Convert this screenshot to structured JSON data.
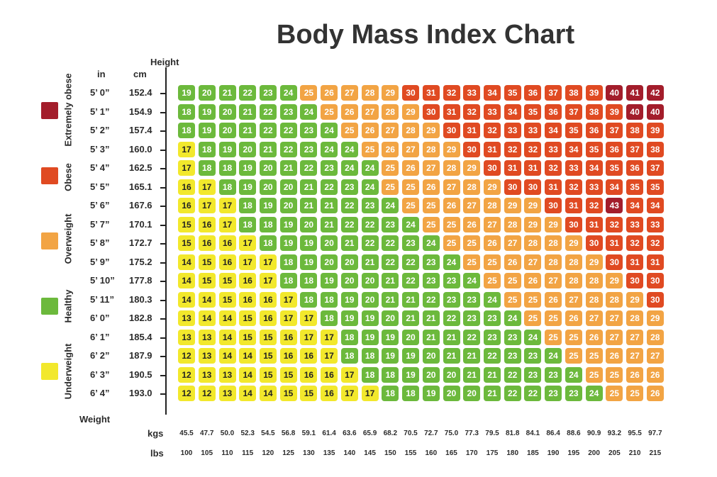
{
  "chart_data": {
    "type": "heatmap",
    "title": "Body Mass Index Chart",
    "ylabel": "Height",
    "xlabel": "Weight",
    "height_units": {
      "in": "in",
      "cm": "cm"
    },
    "weight_units": {
      "kgs": "kgs",
      "lbs": "lbs"
    },
    "heights_in": [
      "5’ 0”",
      "5’ 1”",
      "5’ 2”",
      "5’ 3”",
      "5’ 4”",
      "5’ 5”",
      "5’ 6”",
      "5’ 7”",
      "5’ 8”",
      "5’ 9”",
      "5’ 10”",
      "5’ 11”",
      "6’ 0”",
      "6’ 1”",
      "6’ 2”",
      "6’ 3”",
      "6’ 4”"
    ],
    "heights_cm": [
      "152.4",
      "154.9",
      "157.4",
      "160.0",
      "162.5",
      "165.1",
      "167.6",
      "170.1",
      "172.7",
      "175.2",
      "177.8",
      "180.3",
      "182.8",
      "185.4",
      "187.9",
      "190.5",
      "193.0"
    ],
    "weights_kg": [
      "45.5",
      "47.7",
      "50.0",
      "52.3",
      "54.5",
      "56.8",
      "59.1",
      "61.4",
      "63.6",
      "65.9",
      "68.2",
      "70.5",
      "72.7",
      "75.0",
      "77.3",
      "79.5",
      "81.8",
      "84.1",
      "86.4",
      "88.6",
      "90.9",
      "93.2",
      "95.5",
      "97.7"
    ],
    "weights_lb": [
      "100",
      "105",
      "110",
      "115",
      "120",
      "125",
      "130",
      "135",
      "140",
      "145",
      "150",
      "155",
      "160",
      "165",
      "170",
      "175",
      "180",
      "185",
      "190",
      "195",
      "200",
      "205",
      "210",
      "215"
    ],
    "values": [
      [
        19,
        20,
        21,
        22,
        23,
        24,
        25,
        26,
        27,
        28,
        29,
        30,
        31,
        32,
        33,
        34,
        35,
        36,
        37,
        38,
        39,
        40,
        41,
        42
      ],
      [
        18,
        19,
        20,
        21,
        22,
        23,
        24,
        25,
        26,
        27,
        28,
        29,
        30,
        31,
        32,
        33,
        34,
        35,
        36,
        37,
        38,
        39,
        40,
        40
      ],
      [
        18,
        19,
        20,
        21,
        22,
        22,
        23,
        24,
        25,
        26,
        27,
        28,
        29,
        30,
        31,
        32,
        33,
        33,
        34,
        35,
        36,
        37,
        38,
        39
      ],
      [
        17,
        18,
        19,
        20,
        21,
        22,
        23,
        24,
        24,
        25,
        26,
        27,
        28,
        29,
        30,
        31,
        32,
        32,
        33,
        34,
        35,
        36,
        37,
        38
      ],
      [
        17,
        18,
        18,
        19,
        20,
        21,
        22,
        23,
        24,
        24,
        25,
        26,
        27,
        28,
        29,
        30,
        31,
        31,
        32,
        33,
        34,
        35,
        36,
        37
      ],
      [
        16,
        17,
        18,
        19,
        20,
        20,
        21,
        22,
        23,
        24,
        25,
        25,
        26,
        27,
        28,
        29,
        30,
        30,
        31,
        32,
        33,
        34,
        35,
        35
      ],
      [
        16,
        17,
        17,
        18,
        19,
        20,
        21,
        21,
        22,
        23,
        24,
        25,
        25,
        26,
        27,
        28,
        29,
        29,
        30,
        31,
        32,
        43,
        34,
        34
      ],
      [
        15,
        16,
        17,
        18,
        18,
        19,
        20,
        21,
        22,
        22,
        23,
        24,
        25,
        25,
        26,
        27,
        28,
        29,
        29,
        30,
        31,
        32,
        33,
        33
      ],
      [
        15,
        16,
        16,
        17,
        18,
        19,
        19,
        20,
        21,
        22,
        22,
        23,
        24,
        25,
        25,
        26,
        27,
        28,
        28,
        29,
        30,
        31,
        32,
        32
      ],
      [
        14,
        15,
        16,
        17,
        17,
        18,
        19,
        20,
        20,
        21,
        22,
        22,
        23,
        24,
        25,
        25,
        26,
        27,
        28,
        28,
        29,
        30,
        31,
        31
      ],
      [
        14,
        15,
        15,
        16,
        17,
        18,
        18,
        19,
        20,
        20,
        21,
        22,
        23,
        23,
        24,
        25,
        25,
        26,
        27,
        28,
        28,
        29,
        30,
        30
      ],
      [
        14,
        14,
        15,
        16,
        16,
        17,
        18,
        18,
        19,
        20,
        21,
        21,
        22,
        23,
        23,
        24,
        25,
        25,
        26,
        27,
        28,
        28,
        29,
        30
      ],
      [
        13,
        14,
        14,
        15,
        16,
        17,
        17,
        18,
        19,
        19,
        20,
        21,
        21,
        22,
        23,
        23,
        24,
        25,
        25,
        26,
        27,
        27,
        28,
        29
      ],
      [
        13,
        13,
        14,
        15,
        15,
        16,
        17,
        17,
        18,
        19,
        19,
        20,
        21,
        21,
        22,
        23,
        23,
        24,
        25,
        25,
        26,
        27,
        27,
        28
      ],
      [
        12,
        13,
        14,
        14,
        15,
        16,
        16,
        17,
        18,
        18,
        19,
        19,
        20,
        21,
        21,
        22,
        23,
        23,
        24,
        25,
        25,
        26,
        27,
        27
      ],
      [
        12,
        13,
        13,
        14,
        15,
        15,
        16,
        16,
        17,
        18,
        18,
        19,
        20,
        20,
        21,
        21,
        22,
        23,
        23,
        24,
        25,
        25,
        26,
        26
      ],
      [
        12,
        12,
        13,
        14,
        14,
        15,
        15,
        16,
        17,
        17,
        18,
        18,
        19,
        20,
        20,
        21,
        22,
        22,
        23,
        23,
        24,
        25,
        25,
        26
      ]
    ],
    "legend": [
      {
        "label": "Extremely obese",
        "color": "#a31d2b"
      },
      {
        "label": "Obese",
        "color": "#e04a22"
      },
      {
        "label": "Overweight",
        "color": "#f2a444"
      },
      {
        "label": "Healthy",
        "color": "#6cb93c"
      },
      {
        "label": "Underweight",
        "color": "#f2e82c"
      }
    ]
  }
}
